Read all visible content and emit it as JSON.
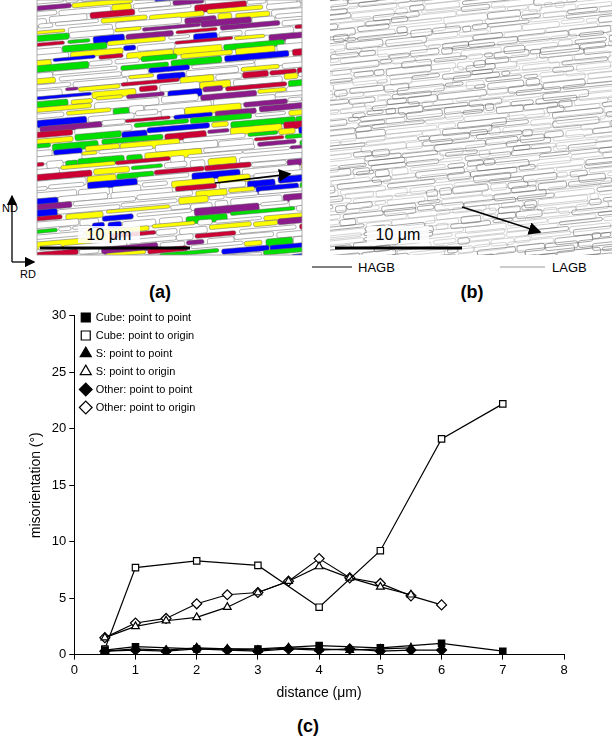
{
  "figure": {
    "panels": [
      {
        "label": "(a)",
        "scale_bar": "10 μm",
        "axes": [
          "ND",
          "RD"
        ]
      },
      {
        "label": "(b)",
        "scale_bar": "10 μm",
        "boundary_legend": [
          "HAGB",
          "LAGB"
        ]
      }
    ]
  },
  "chart_data": {
    "type": "line",
    "panel_label": "(c)",
    "x_label": "distance (μm)",
    "y_label": "misorientation (°)",
    "xlim": [
      0,
      8
    ],
    "xticks": [
      0,
      1,
      2,
      3,
      4,
      5,
      6,
      7,
      8
    ],
    "ylim": [
      0,
      30
    ],
    "yticks": [
      0,
      5,
      10,
      15,
      20,
      25,
      30
    ],
    "grid": false,
    "legend": "upper left",
    "series": [
      {
        "name": "Cube: point to point",
        "color": "#000000",
        "marker": "square",
        "x": [
          0.5,
          1,
          2,
          3,
          4,
          5,
          6,
          7
        ],
        "values": [
          0.4,
          0.7,
          0.5,
          0.5,
          0.8,
          0.6,
          1.0,
          0.3
        ]
      },
      {
        "name": "Cube: point to origin",
        "color": "#000000",
        "marker": "square-open",
        "x": [
          0.5,
          1,
          2,
          3,
          4,
          5,
          6,
          7
        ],
        "values": [
          0.5,
          7.7,
          8.3,
          7.9,
          4.2,
          9.2,
          19.1,
          22.2
        ]
      },
      {
        "name": "S: point to point",
        "color": "#000000",
        "marker": "triangle",
        "x": [
          0.5,
          1,
          1.5,
          2,
          2.5,
          3,
          3.5,
          4,
          4.5,
          5,
          5.5
        ],
        "values": [
          0.3,
          0.5,
          0.4,
          0.6,
          0.5,
          0.4,
          0.6,
          0.5,
          0.4,
          0.5,
          0.6
        ]
      },
      {
        "name": "S: point to origin",
        "color": "#000000",
        "marker": "triangle-open",
        "x": [
          0.5,
          1,
          1.5,
          2,
          2.5,
          3,
          3.5,
          4,
          4.5,
          5,
          5.5
        ],
        "values": [
          1.5,
          2.5,
          3.0,
          3.3,
          4.2,
          5.5,
          6.5,
          7.8,
          6.8,
          6.0,
          5.3
        ]
      },
      {
        "name": "Other: point to point",
        "color": "#000000",
        "marker": "diamond",
        "x": [
          0.5,
          1,
          1.5,
          2,
          2.5,
          3,
          3.5,
          4,
          4.5,
          5,
          5.5,
          6
        ],
        "values": [
          0.3,
          0.4,
          0.3,
          0.5,
          0.4,
          0.3,
          0.5,
          0.4,
          0.5,
          0.3,
          0.4,
          0.4
        ]
      },
      {
        "name": "Other: point to origin",
        "color": "#000000",
        "marker": "diamond-open",
        "x": [
          0.5,
          1,
          1.5,
          2,
          2.5,
          3,
          3.5,
          4,
          4.5,
          5,
          5.5,
          6
        ],
        "values": [
          1.5,
          2.8,
          3.2,
          4.5,
          5.3,
          5.5,
          6.5,
          8.5,
          6.8,
          6.3,
          5.2,
          4.4
        ]
      }
    ]
  }
}
